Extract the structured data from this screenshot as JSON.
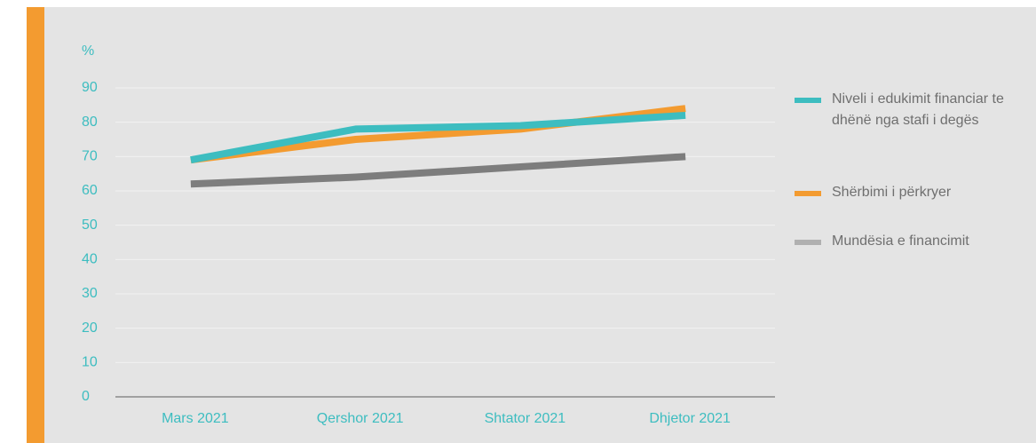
{
  "chart_data": {
    "type": "line",
    "y_label": "%",
    "categories": [
      "Mars 2021",
      "Qershor 2021",
      "Shtator 2021",
      "Dhjetor 2021"
    ],
    "series": [
      {
        "name": "Niveli i edukimit financiar te dhënë nga stafi i degës",
        "color": "#3dbdc0",
        "values": [
          69,
          78,
          79,
          82
        ]
      },
      {
        "name": "Shërbimi i përkryer",
        "color": "#f39b30",
        "values": [
          69,
          75,
          78,
          84
        ]
      },
      {
        "name": "Mundësia e financimit",
        "color": "#7d7d7d",
        "values": [
          62,
          64,
          67,
          70
        ]
      }
    ],
    "ylim": [
      0,
      90
    ],
    "yticks": [
      0,
      10,
      20,
      30,
      40,
      50,
      60,
      70,
      80,
      90
    ],
    "grid": true,
    "legend": "right"
  }
}
